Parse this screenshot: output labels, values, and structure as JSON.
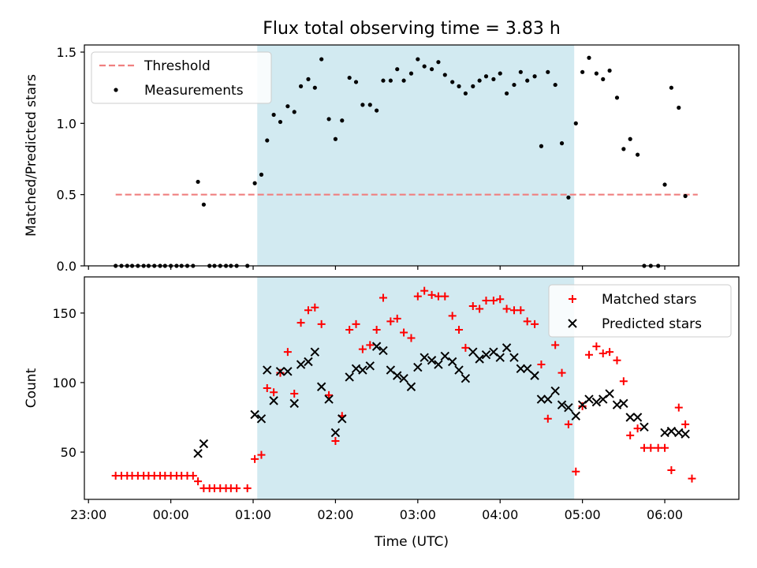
{
  "figure": {
    "title": "Flux total observing time = 3.83 h",
    "xlabel": "Time (UTC)"
  },
  "chart_data": [
    {
      "type": "scatter",
      "ylabel": "Matched/Predicted stars",
      "ylim": [
        0,
        1.55
      ],
      "yticks": [
        0.0,
        0.5,
        1.0,
        1.5
      ],
      "ytick_labels": [
        "0.0",
        "0.5",
        "1.0",
        "1.5"
      ],
      "xlim": [
        -0.05,
        7.9
      ],
      "shaded_span": {
        "from": 2.05,
        "to": 5.9,
        "color": "#add8e6"
      },
      "threshold": {
        "name": "Threshold",
        "value": 0.5,
        "x_from": 0.33,
        "x_to": 7.4,
        "color": "#f08080",
        "style": "dashed"
      },
      "legend": {
        "placement": "top-left",
        "entries": [
          "Threshold",
          "Measurements"
        ]
      },
      "series": [
        {
          "name": "Measurements",
          "color": "#000000",
          "marker": "dot",
          "points": [
            [
              0.33,
              0
            ],
            [
              0.4,
              0
            ],
            [
              0.47,
              0
            ],
            [
              0.53,
              0
            ],
            [
              0.6,
              0
            ],
            [
              0.67,
              0
            ],
            [
              0.73,
              0
            ],
            [
              0.8,
              0
            ],
            [
              0.87,
              0
            ],
            [
              0.93,
              0
            ],
            [
              1.0,
              0
            ],
            [
              1.07,
              0
            ],
            [
              1.13,
              0
            ],
            [
              1.2,
              0
            ],
            [
              1.27,
              0
            ],
            [
              1.33,
              0.59
            ],
            [
              1.4,
              0.43
            ],
            [
              1.47,
              0
            ],
            [
              1.53,
              0
            ],
            [
              1.6,
              0
            ],
            [
              1.67,
              0
            ],
            [
              1.73,
              0
            ],
            [
              1.8,
              0
            ],
            [
              1.93,
              0
            ],
            [
              2.02,
              0.58
            ],
            [
              2.1,
              0.64
            ],
            [
              2.17,
              0.88
            ],
            [
              2.25,
              1.06
            ],
            [
              2.33,
              1.01
            ],
            [
              2.42,
              1.12
            ],
            [
              2.5,
              1.08
            ],
            [
              2.58,
              1.26
            ],
            [
              2.67,
              1.31
            ],
            [
              2.75,
              1.25
            ],
            [
              2.83,
              1.45
            ],
            [
              2.92,
              1.03
            ],
            [
              3.0,
              0.89
            ],
            [
              3.08,
              1.02
            ],
            [
              3.17,
              1.32
            ],
            [
              3.25,
              1.29
            ],
            [
              3.33,
              1.13
            ],
            [
              3.42,
              1.13
            ],
            [
              3.5,
              1.09
            ],
            [
              3.58,
              1.3
            ],
            [
              3.67,
              1.3
            ],
            [
              3.75,
              1.38
            ],
            [
              3.83,
              1.3
            ],
            [
              3.92,
              1.35
            ],
            [
              4.0,
              1.45
            ],
            [
              4.08,
              1.4
            ],
            [
              4.17,
              1.38
            ],
            [
              4.25,
              1.43
            ],
            [
              4.33,
              1.34
            ],
            [
              4.42,
              1.29
            ],
            [
              4.5,
              1.26
            ],
            [
              4.58,
              1.21
            ],
            [
              4.67,
              1.26
            ],
            [
              4.75,
              1.3
            ],
            [
              4.83,
              1.33
            ],
            [
              4.92,
              1.31
            ],
            [
              5.0,
              1.35
            ],
            [
              5.08,
              1.21
            ],
            [
              5.17,
              1.27
            ],
            [
              5.25,
              1.36
            ],
            [
              5.33,
              1.3
            ],
            [
              5.42,
              1.33
            ],
            [
              5.5,
              0.84
            ],
            [
              5.58,
              1.36
            ],
            [
              5.67,
              1.27
            ],
            [
              5.75,
              0.86
            ],
            [
              5.83,
              0.48
            ],
            [
              5.92,
              1.0
            ],
            [
              6.0,
              1.36
            ],
            [
              6.08,
              1.46
            ],
            [
              6.17,
              1.35
            ],
            [
              6.25,
              1.31
            ],
            [
              6.33,
              1.37
            ],
            [
              6.42,
              1.18
            ],
            [
              6.5,
              0.82
            ],
            [
              6.58,
              0.89
            ],
            [
              6.67,
              0.78
            ],
            [
              6.75,
              0
            ],
            [
              6.83,
              0
            ],
            [
              6.92,
              0
            ],
            [
              7.0,
              0.57
            ],
            [
              7.08,
              1.25
            ],
            [
              7.17,
              1.11
            ],
            [
              7.25,
              0.49
            ]
          ]
        }
      ]
    },
    {
      "type": "scatter",
      "ylabel": "Count",
      "ylim": [
        16,
        176
      ],
      "yticks": [
        50,
        100,
        150
      ],
      "ytick_labels": [
        "50",
        "100",
        "150"
      ],
      "xlim": [
        -0.05,
        7.9
      ],
      "xticks": [
        0,
        1,
        2,
        3,
        4,
        5,
        6,
        7
      ],
      "xtick_labels": [
        "23:00",
        "00:00",
        "01:00",
        "02:00",
        "03:00",
        "04:00",
        "05:00",
        "06:00"
      ],
      "shaded_span": {
        "from": 2.05,
        "to": 5.9,
        "color": "#add8e6"
      },
      "legend": {
        "placement": "top-right",
        "entries": [
          "Matched stars",
          "Predicted stars"
        ]
      },
      "series": [
        {
          "name": "Matched stars",
          "color": "#ff0000",
          "marker": "plus",
          "points": [
            [
              0.33,
              33
            ],
            [
              0.4,
              33
            ],
            [
              0.47,
              33
            ],
            [
              0.53,
              33
            ],
            [
              0.6,
              33
            ],
            [
              0.67,
              33
            ],
            [
              0.73,
              33
            ],
            [
              0.8,
              33
            ],
            [
              0.87,
              33
            ],
            [
              0.93,
              33
            ],
            [
              1.0,
              33
            ],
            [
              1.07,
              33
            ],
            [
              1.13,
              33
            ],
            [
              1.2,
              33
            ],
            [
              1.27,
              33
            ],
            [
              1.33,
              29
            ],
            [
              1.4,
              24
            ],
            [
              1.47,
              24
            ],
            [
              1.53,
              24
            ],
            [
              1.6,
              24
            ],
            [
              1.67,
              24
            ],
            [
              1.73,
              24
            ],
            [
              1.8,
              24
            ],
            [
              1.93,
              24
            ],
            [
              2.02,
              45
            ],
            [
              2.1,
              48
            ],
            [
              2.17,
              96
            ],
            [
              2.25,
              93
            ],
            [
              2.33,
              107
            ],
            [
              2.42,
              122
            ],
            [
              2.5,
              92
            ],
            [
              2.58,
              143
            ],
            [
              2.67,
              152
            ],
            [
              2.75,
              154
            ],
            [
              2.83,
              142
            ],
            [
              2.92,
              91
            ],
            [
              3.0,
              58
            ],
            [
              3.08,
              76
            ],
            [
              3.17,
              138
            ],
            [
              3.25,
              142
            ],
            [
              3.33,
              124
            ],
            [
              3.42,
              127
            ],
            [
              3.5,
              138
            ],
            [
              3.58,
              161
            ],
            [
              3.67,
              144
            ],
            [
              3.75,
              146
            ],
            [
              3.83,
              136
            ],
            [
              3.92,
              132
            ],
            [
              4.0,
              162
            ],
            [
              4.08,
              166
            ],
            [
              4.17,
              163
            ],
            [
              4.25,
              162
            ],
            [
              4.33,
              162
            ],
            [
              4.42,
              148
            ],
            [
              4.5,
              138
            ],
            [
              4.58,
              125
            ],
            [
              4.67,
              155
            ],
            [
              4.75,
              153
            ],
            [
              4.83,
              159
            ],
            [
              4.92,
              159
            ],
            [
              5.0,
              160
            ],
            [
              5.08,
              153
            ],
            [
              5.17,
              152
            ],
            [
              5.25,
              152
            ],
            [
              5.33,
              144
            ],
            [
              5.42,
              142
            ],
            [
              5.5,
              113
            ],
            [
              5.58,
              74
            ],
            [
              5.67,
              127
            ],
            [
              5.75,
              107
            ],
            [
              5.83,
              70
            ],
            [
              5.92,
              36
            ],
            [
              6.0,
              83
            ],
            [
              6.08,
              120
            ],
            [
              6.17,
              126
            ],
            [
              6.25,
              121
            ],
            [
              6.33,
              122
            ],
            [
              6.42,
              116
            ],
            [
              6.5,
              101
            ],
            [
              6.58,
              62
            ],
            [
              6.67,
              67
            ],
            [
              6.75,
              53
            ],
            [
              6.83,
              53
            ],
            [
              6.92,
              53
            ],
            [
              7.0,
              53
            ],
            [
              7.08,
              37
            ],
            [
              7.17,
              82
            ],
            [
              7.25,
              70
            ],
            [
              7.33,
              31
            ]
          ]
        },
        {
          "name": "Predicted stars",
          "color": "#000000",
          "marker": "cross",
          "points": [
            [
              1.33,
              49
            ],
            [
              1.4,
              56
            ],
            [
              2.02,
              77
            ],
            [
              2.1,
              74
            ],
            [
              2.17,
              109
            ],
            [
              2.25,
              87
            ],
            [
              2.33,
              108
            ],
            [
              2.42,
              108
            ],
            [
              2.5,
              85
            ],
            [
              2.58,
              113
            ],
            [
              2.67,
              115
            ],
            [
              2.75,
              122
            ],
            [
              2.83,
              97
            ],
            [
              2.92,
              88
            ],
            [
              3.0,
              64
            ],
            [
              3.08,
              74
            ],
            [
              3.17,
              104
            ],
            [
              3.25,
              110
            ],
            [
              3.33,
              109
            ],
            [
              3.42,
              112
            ],
            [
              3.5,
              126
            ],
            [
              3.58,
              123
            ],
            [
              3.67,
              109
            ],
            [
              3.75,
              105
            ],
            [
              3.83,
              103
            ],
            [
              3.92,
              97
            ],
            [
              4.0,
              111
            ],
            [
              4.08,
              118
            ],
            [
              4.17,
              116
            ],
            [
              4.25,
              113
            ],
            [
              4.33,
              119
            ],
            [
              4.42,
              115
            ],
            [
              4.5,
              109
            ],
            [
              4.58,
              103
            ],
            [
              4.67,
              122
            ],
            [
              4.75,
              117
            ],
            [
              4.83,
              120
            ],
            [
              4.92,
              122
            ],
            [
              5.0,
              118
            ],
            [
              5.08,
              125
            ],
            [
              5.17,
              118
            ],
            [
              5.25,
              110
            ],
            [
              5.33,
              110
            ],
            [
              5.42,
              105
            ],
            [
              5.5,
              88
            ],
            [
              5.58,
              88
            ],
            [
              5.67,
              94
            ],
            [
              5.75,
              84
            ],
            [
              5.83,
              82
            ],
            [
              5.92,
              76
            ],
            [
              6.0,
              84
            ],
            [
              6.08,
              88
            ],
            [
              6.17,
              86
            ],
            [
              6.25,
              88
            ],
            [
              6.33,
              92
            ],
            [
              6.42,
              84
            ],
            [
              6.5,
              85
            ],
            [
              6.58,
              75
            ],
            [
              6.67,
              75
            ],
            [
              6.75,
              68
            ],
            [
              7.0,
              64
            ],
            [
              7.08,
              65
            ],
            [
              7.17,
              64
            ],
            [
              7.25,
              63
            ]
          ]
        }
      ]
    }
  ]
}
